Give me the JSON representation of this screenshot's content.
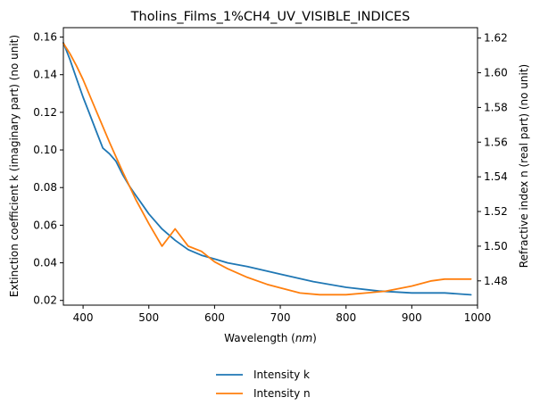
{
  "chart_data": {
    "type": "line",
    "title": "Tholins_Films_1%CH4_UV_VISIBLE_INDICES",
    "xlabel_text": "Wavelength (",
    "xlabel_unit": "nm",
    "xlabel_close": ")",
    "ylabel_left": "Extinction coefficient k (imaginary part) (no unit)",
    "ylabel_right": "Refractive index n (real part) (no unit)",
    "xlim": [
      370,
      1000
    ],
    "ylim_left": [
      0.0175,
      0.165
    ],
    "ylim_right": [
      1.466,
      1.626
    ],
    "xticks": [
      400,
      500,
      600,
      700,
      800,
      900,
      1000
    ],
    "yticks_left": [
      0.02,
      0.04,
      0.06,
      0.08,
      0.1,
      0.12,
      0.14,
      0.16
    ],
    "yticks_left_labels": [
      "0.02",
      "0.04",
      "0.06",
      "0.08",
      "0.10",
      "0.12",
      "0.14",
      "0.16"
    ],
    "yticks_right": [
      1.48,
      1.5,
      1.52,
      1.54,
      1.56,
      1.58,
      1.6,
      1.62
    ],
    "yticks_right_labels": [
      "1.48",
      "1.50",
      "1.52",
      "1.54",
      "1.56",
      "1.58",
      "1.60",
      "1.62"
    ],
    "legend_position": "below",
    "series": [
      {
        "name": "Intensity k",
        "axis": "left",
        "color": "#1f77b4",
        "x": [
          370,
          380,
          390,
          400,
          410,
          420,
          430,
          440,
          450,
          460,
          470,
          480,
          490,
          500,
          520,
          540,
          560,
          580,
          600,
          620,
          650,
          700,
          750,
          800,
          850,
          900,
          950,
          990
        ],
        "y": [
          0.157,
          0.148,
          0.138,
          0.128,
          0.119,
          0.11,
          0.101,
          0.098,
          0.094,
          0.087,
          0.081,
          0.076,
          0.071,
          0.066,
          0.058,
          0.052,
          0.047,
          0.044,
          0.042,
          0.04,
          0.038,
          0.034,
          0.03,
          0.027,
          0.025,
          0.024,
          0.024,
          0.023
        ]
      },
      {
        "name": "Intensity n",
        "axis": "right",
        "color": "#ff7f0e",
        "x": [
          370,
          380,
          390,
          400,
          420,
          440,
          460,
          480,
          500,
          520,
          540,
          560,
          580,
          600,
          620,
          650,
          680,
          700,
          730,
          760,
          800,
          830,
          860,
          900,
          930,
          950,
          990
        ],
        "y": [
          1.617,
          1.611,
          1.604,
          1.596,
          1.578,
          1.56,
          1.543,
          1.527,
          1.513,
          1.5,
          1.51,
          1.5,
          1.497,
          1.491,
          1.487,
          1.482,
          1.478,
          1.476,
          1.473,
          1.472,
          1.472,
          1.473,
          1.474,
          1.477,
          1.48,
          1.481,
          1.481
        ]
      }
    ]
  }
}
